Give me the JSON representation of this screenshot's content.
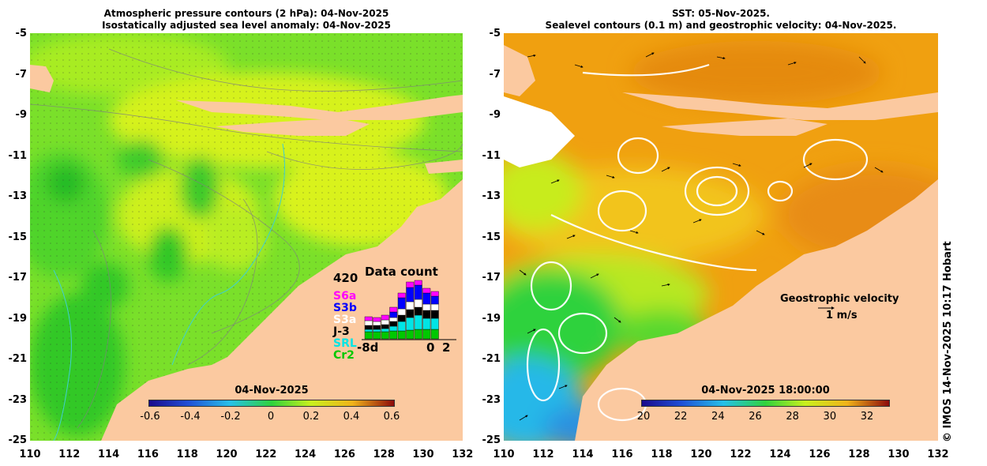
{
  "left_panel": {
    "title_line1": "Atmospheric pressure contours (2 hPa): 04-Nov-2025",
    "title_line2": "Isostatically adjusted sea level anomaly: 04-Nov-2025",
    "colorbar": {
      "date": "04-Nov-2025",
      "ticks": [
        "-0.6",
        "-0.4",
        "-0.2",
        "0",
        "0.2",
        "0.4",
        "0.6"
      ],
      "colors": [
        "#1a0a8c",
        "#1f4fd6",
        "#27c0e8",
        "#2fd23c",
        "#c8f01e",
        "#f0b31a",
        "#8c0a0a"
      ]
    },
    "data_count": {
      "title": "Data count",
      "max_label": "420",
      "xaxis": [
        "-8d",
        "0",
        "2"
      ],
      "satellites": [
        {
          "name": "S6a",
          "color": "#ff00ff"
        },
        {
          "name": "S3b",
          "color": "#0000ff"
        },
        {
          "name": "S3a",
          "color": "#ffffff"
        },
        {
          "name": "J-3",
          "color": "#000000"
        },
        {
          "name": "SRL",
          "color": "#00e5e5"
        },
        {
          "name": "Cr2",
          "color": "#00c800"
        }
      ],
      "bars": [
        {
          "S6a": 5,
          "S3b": 0,
          "S3a": 6,
          "J-3": 5,
          "SRL": 3,
          "Cr2": 9
        },
        {
          "S6a": 5,
          "S3b": 0,
          "S3a": 5,
          "J-3": 5,
          "SRL": 3,
          "Cr2": 9
        },
        {
          "S6a": 6,
          "S3b": 0,
          "S3a": 6,
          "J-3": 5,
          "SRL": 4,
          "Cr2": 9
        },
        {
          "S6a": 6,
          "S3b": 7,
          "S3a": 5,
          "J-3": 6,
          "SRL": 6,
          "Cr2": 10
        },
        {
          "S6a": 6,
          "S3b": 14,
          "S3a": 8,
          "J-3": 8,
          "SRL": 12,
          "Cr2": 10
        },
        {
          "S6a": 7,
          "S3b": 18,
          "S3a": 10,
          "J-3": 10,
          "SRL": 16,
          "Cr2": 11
        },
        {
          "S6a": 6,
          "S3b": 18,
          "S3a": 10,
          "J-3": 10,
          "SRL": 18,
          "Cr2": 12
        },
        {
          "S6a": 6,
          "S3b": 14,
          "S3a": 8,
          "J-3": 10,
          "SRL": 14,
          "Cr2": 12
        },
        {
          "S6a": 6,
          "S3b": 10,
          "S3a": 8,
          "J-3": 10,
          "SRL": 14,
          "Cr2": 12
        }
      ]
    }
  },
  "right_panel": {
    "title_line1": "SST: 05-Nov-2025.",
    "title_line2": "Sealevel contours (0.1 m) and geostrophic velocity: 04-Nov-2025.",
    "colorbar": {
      "date": "04-Nov-2025 18:00:00",
      "ticks": [
        "20",
        "22",
        "24",
        "26",
        "28",
        "30",
        "32"
      ],
      "colors": [
        "#1a0a8c",
        "#1f4fd6",
        "#27c0e8",
        "#2fd23c",
        "#c8f01e",
        "#f0b31a",
        "#8c0a0a"
      ]
    },
    "velocity_legend": {
      "label": "Geostrophic velocity",
      "scale": "1 m/s"
    }
  },
  "axes": {
    "y_labels": [
      "-5",
      "-7",
      "-9",
      "-11",
      "-13",
      "-15",
      "-17",
      "-19",
      "-21",
      "-23",
      "-25"
    ],
    "x_labels": [
      "110",
      "112",
      "114",
      "116",
      "118",
      "120",
      "122",
      "124",
      "126",
      "128",
      "130",
      "132"
    ]
  },
  "credit": "© IMOS 14-Nov-2025 10:17 Hobart",
  "colors": {
    "land": "#fbc9a0",
    "sea_green": "#5fdc2c",
    "sst_orange": "#f0a010"
  }
}
